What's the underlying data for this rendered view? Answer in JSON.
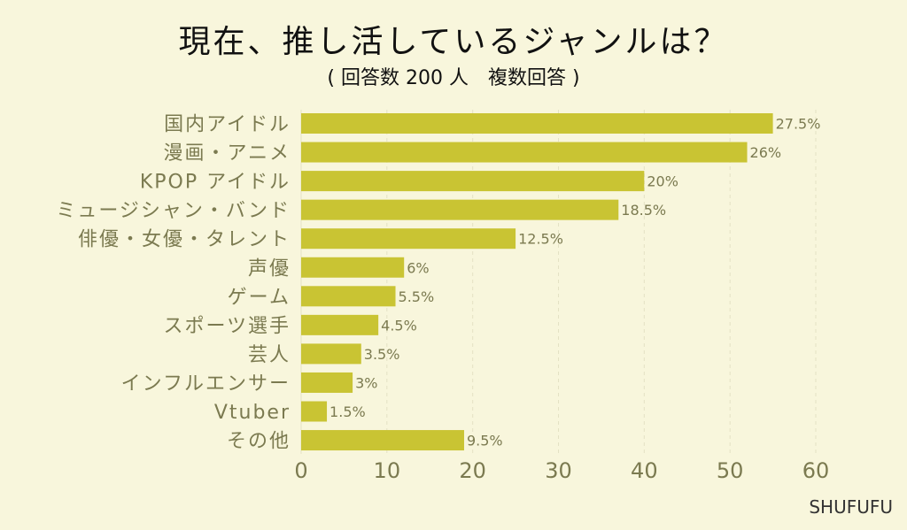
{
  "chart_data": {
    "type": "bar",
    "orientation": "horizontal",
    "title": "現在、推し活しているジャンルは？",
    "subtitle": "( 回答数 200 人　複数回答 )",
    "categories": [
      "国内アイドル",
      "漫画・アニメ",
      "KPOP アイドル",
      "ミュージシャン・バンド",
      "俳優・女優・タレント",
      "声優",
      "ゲーム",
      "スポーツ選手",
      "芸人",
      "インフルエンサー",
      "Vtuber",
      "その他"
    ],
    "values": [
      55,
      52,
      40,
      37,
      25,
      12,
      11,
      9,
      7,
      6,
      3,
      19
    ],
    "data_labels": [
      "27.5%",
      "26%",
      "20%",
      "18.5%",
      "12.5%",
      "6%",
      "5.5%",
      "4.5%",
      "3.5%",
      "3%",
      "1.5%",
      "9.5%"
    ],
    "xlim": [
      0,
      60
    ],
    "xticks": [
      0,
      10,
      20,
      30,
      40,
      50,
      60
    ],
    "grid": true,
    "xlabel": "",
    "ylabel": ""
  },
  "credit": "SHUFUFU",
  "colors": {
    "bar": "#c9c433",
    "background": "#f8f6dc",
    "label": "#7b7a50",
    "grid": "#e4e2c4"
  }
}
